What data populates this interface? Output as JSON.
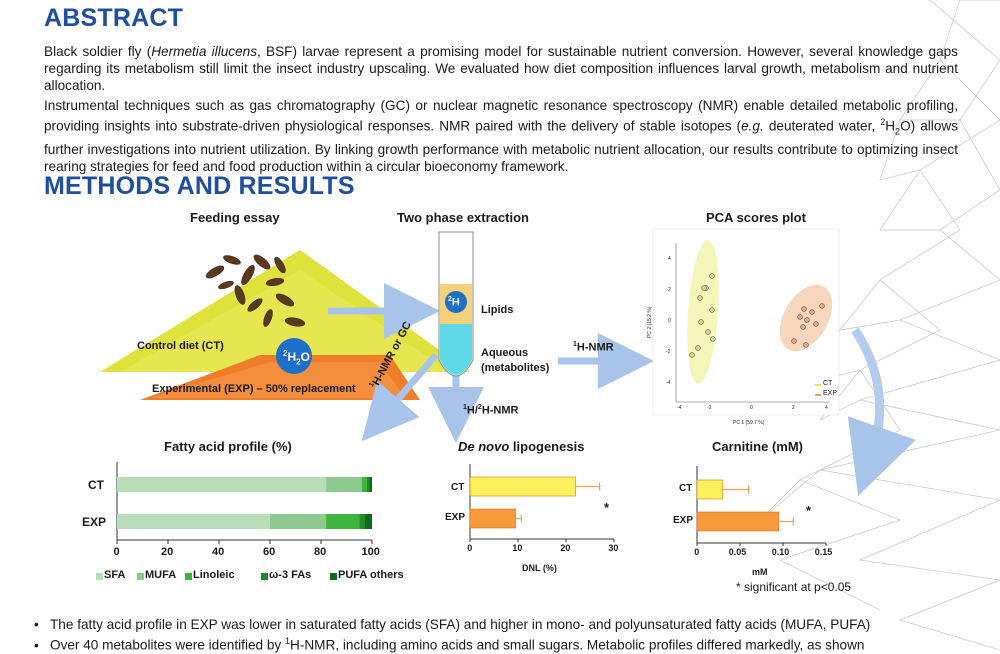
{
  "abstract": {
    "heading": "ABSTRACT",
    "p1": {
      "a": "Black soldier fly (",
      "species": "Hermetia illucens",
      "b": ", BSF) larvae represent a promising model for sustainable nutrient conversion. However, several knowledge gaps regarding its metabolism still limit the insect industry upscaling. We evaluated how diet composition influences larval growth, metabolism and nutrient allocation."
    },
    "p2": {
      "a": "Instrumental techniques such as gas chromatography (GC) or nuclear magnetic resonance spectroscopy (NMR) enable detailed metabolic profiling, providing insights into substrate-driven physiological responses. NMR paired with the delivery of stable isotopes (",
      "eg": "e.g.",
      "b": " deuterated water, ",
      "isotope_sup": "2",
      "isotope_base": "H",
      "isotope_sub": "2",
      "isotope_end": "O",
      "c": ") allows further investigations into nutrient utilization. By linking growth performance with metabolic nutrient allocation, our results contribute to optimizing insect rearing strategies for feed and food production within a circular bioeconomy framework."
    }
  },
  "methods": {
    "heading": "METHODS AND RESULTS",
    "feeding": {
      "title": "Feeding essay",
      "control": "Control diet (CT)",
      "experimental": "Experimental (EXP) – 50% replacement",
      "water_sup": "2",
      "water_base": "H",
      "water_sub": "2",
      "water_end": "O"
    },
    "extraction": {
      "title": "Two phase extraction",
      "tube_label_sup": "2",
      "tube_label": "H",
      "lipids": "Lipids",
      "aqueous": "Aqueous",
      "aqueous2": "(metabolites)",
      "nmr_sup": "1",
      "nmr": "H-NMR",
      "down_sup1": "1",
      "down_mid": "H/",
      "down_sup2": "2",
      "down_end": "H-NMR",
      "diag_sup": "1",
      "diag": "H-NMR or GC"
    },
    "pca": {
      "title": "PCA scores plot",
      "xlabel": "PC 1 (59.7 %)",
      "ylabel": "PC 2 (15.2 %)",
      "x_ticks": [
        "-4",
        "-2",
        "0",
        "2",
        "4"
      ],
      "y_ticks": [
        "4",
        "2",
        "0",
        "-2",
        "-4"
      ],
      "legend": [
        "CT",
        "EXP"
      ]
    },
    "significance_note": "* significant at p<0.05"
  },
  "chart_data": [
    {
      "type": "bar",
      "orientation": "horizontal",
      "stacked": true,
      "title": "Fatty acid profile (%)",
      "categories": [
        "CT",
        "EXP"
      ],
      "xlim": [
        0,
        100
      ],
      "x_ticks": [
        "0",
        "20",
        "40",
        "60",
        "80",
        "100"
      ],
      "series": [
        {
          "name": "SFA",
          "values": [
            82,
            60
          ],
          "color": "#b9dcb9"
        },
        {
          "name": "MUFA",
          "values": [
            14,
            22
          ],
          "color": "#8fc98f"
        },
        {
          "name": "Linoleic",
          "values": [
            2,
            13
          ],
          "color": "#3db43d"
        },
        {
          "name": "ω-3 FAs",
          "values": [
            1,
            2
          ],
          "color": "#1f8a2a"
        },
        {
          "name": "PUFA others",
          "values": [
            1,
            3
          ],
          "color": "#0f6a1a"
        }
      ],
      "legend_position": "bottom"
    },
    {
      "type": "bar",
      "orientation": "horizontal",
      "title_italic": "De novo",
      "title_rest": " lipogenesis",
      "xlabel": "DNL (%)",
      "categories": [
        "CT",
        "EXP"
      ],
      "values": [
        22,
        9.5
      ],
      "errors": [
        5,
        1.2
      ],
      "colors": [
        "#fbf15c",
        "#f79a3c"
      ],
      "xlim": [
        0,
        30
      ],
      "x_ticks": [
        "0",
        "10",
        "20",
        "30"
      ],
      "annotation": "*"
    },
    {
      "type": "bar",
      "orientation": "horizontal",
      "title": "Carnitine (mM)",
      "xlabel": "mM",
      "categories": [
        "CT",
        "EXP"
      ],
      "values": [
        0.03,
        0.095
      ],
      "errors": [
        0.03,
        0.017
      ],
      "colors": [
        "#fbf15c",
        "#f79a3c"
      ],
      "xlim": [
        0,
        0.15
      ],
      "x_ticks": [
        "0",
        "0.05",
        "0.10",
        "0.15"
      ],
      "annotation": "*"
    }
  ],
  "bullets": [
    "The fatty acid profile in EXP was lower in saturated fatty acids (SFA) and higher in mono- and polyunsaturated fatty acids (MUFA, PUFA)",
    {
      "a": "Over 40 metabolites were identified by ",
      "sup": "1",
      "b": "H-NMR, including amino acids and small sugars. Metabolic profiles differed markedly, as shown"
    }
  ]
}
